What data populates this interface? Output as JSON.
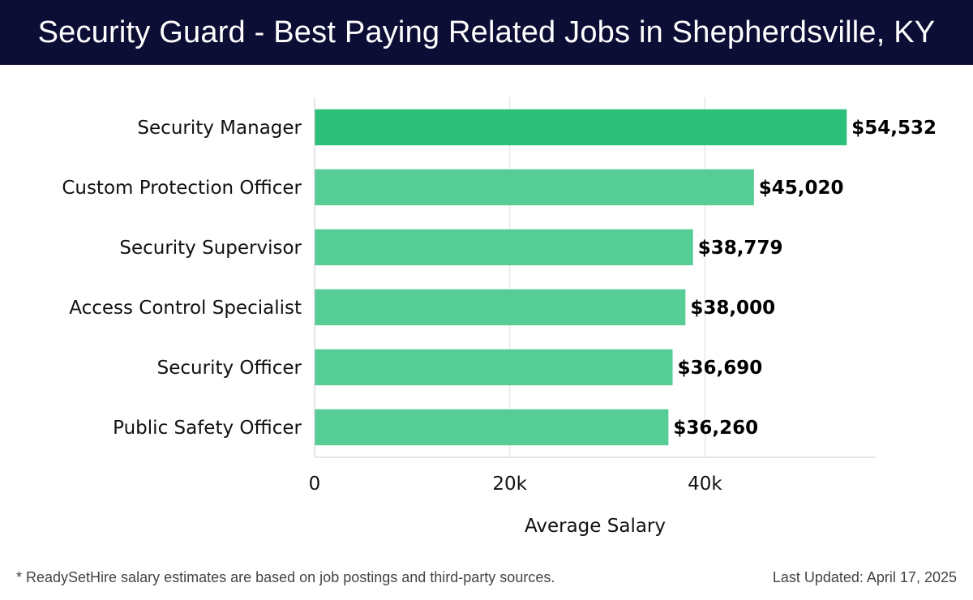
{
  "header": {
    "title": "Security Guard - Best Paying Related Jobs in Shepherdsville, KY"
  },
  "chart_data": {
    "type": "bar",
    "orientation": "horizontal",
    "categories": [
      "Security Manager",
      "Custom Protection Officer",
      "Security Supervisor",
      "Access Control Specialist",
      "Security Officer",
      "Public Safety Officer"
    ],
    "values": [
      54532,
      45020,
      38779,
      38000,
      36690,
      36260
    ],
    "value_labels": [
      "$54,532",
      "$45,020",
      "$38,779",
      "$38,000",
      "$36,690",
      "$36,260"
    ],
    "xlabel": "Average Salary",
    "ylabel": "",
    "xlim": [
      0,
      57500
    ],
    "x_ticks": [
      0,
      20000,
      40000
    ],
    "x_tick_labels": [
      "0",
      "20k",
      "40k"
    ],
    "grid": "vertical",
    "colors": {
      "highlight": "#2cc07a",
      "bar": "#55cd95",
      "gridline": "#dddddd",
      "axis": "#cccccc"
    }
  },
  "footer": {
    "note": "* ReadySetHire salary estimates are based on job postings and third-party sources.",
    "updated": "Last Updated: April 17, 2025"
  }
}
